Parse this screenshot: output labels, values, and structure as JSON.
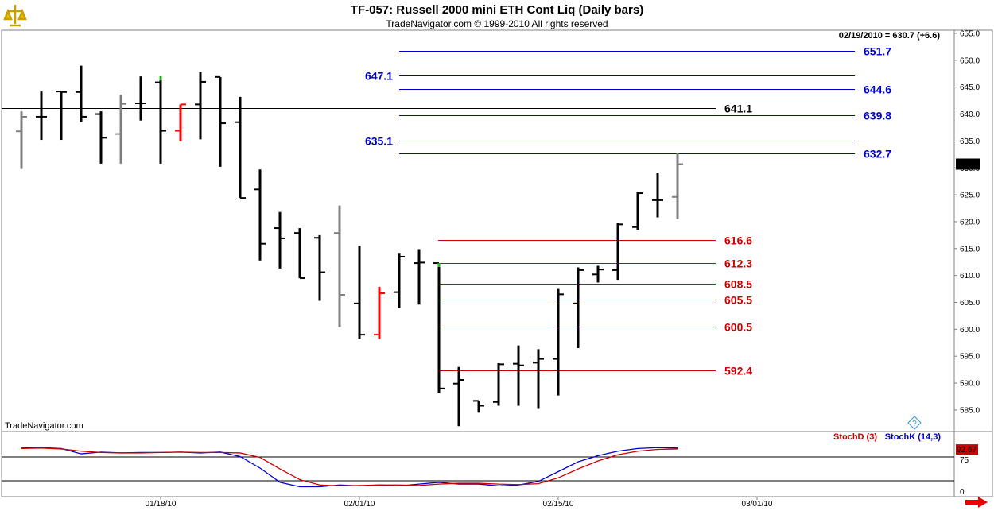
{
  "header": {
    "title": "TF-057:  Russell 2000 mini ETH Cont Liq  (Daily bars)",
    "subtitle": "TradeNavigator.com © 1999-2010 All rights reserved",
    "info": "02/19/2010 = 630.7 (+6.6)",
    "watermark": "TradeNavigator.com"
  },
  "colors": {
    "bar": "#000000",
    "bar_gray": "#808080",
    "bar_red": "#ff0000",
    "bar_green": "#22bb22",
    "level_blue": "#0000cc",
    "level_red": "#cc0000",
    "level_black": "#000000",
    "stochD": "#cc0000",
    "stochK": "#0000cc"
  },
  "chart_data": {
    "type": "ohlc",
    "y_ticks": [
      "655.0",
      "650.0",
      "645.0",
      "640.0",
      "635.0",
      "630.0",
      "625.0",
      "620.0",
      "615.0",
      "610.0",
      "605.0",
      "600.0",
      "595.0",
      "590.0",
      "585.0"
    ],
    "ylim": [
      582,
      656
    ],
    "last_price_label": "630.7",
    "x_ticks": [
      {
        "label": "01/18/10",
        "index": 7
      },
      {
        "label": "02/01/10",
        "index": 17
      },
      {
        "label": "02/15/10",
        "index": 27
      },
      {
        "label": "03/01/10",
        "index": 37
      }
    ],
    "bars": [
      {
        "o": 636.8,
        "h": 640.5,
        "l": 629.8,
        "c": 639.5,
        "color": "gray"
      },
      {
        "o": 639.5,
        "h": 644.2,
        "l": 635.2,
        "c": 639.5,
        "color": "black"
      },
      {
        "o": 644.2,
        "h": 644.2,
        "l": 635.2,
        "c": 644.1,
        "color": "black"
      },
      {
        "o": 644.1,
        "h": 649.0,
        "l": 638.5,
        "c": 639.5,
        "color": "black"
      },
      {
        "o": 640.0,
        "h": 640.5,
        "l": 630.8,
        "c": 635.6,
        "color": "black"
      },
      {
        "o": 636.3,
        "h": 643.6,
        "l": 630.8,
        "c": 641.9,
        "color": "gray"
      },
      {
        "o": 642.0,
        "h": 647.0,
        "l": 638.8,
        "c": 642.0,
        "color": "black"
      },
      {
        "o": 645.9,
        "h": 647.0,
        "l": 630.8,
        "c": 636.9,
        "color": "black",
        "green_high": true
      },
      {
        "o": 636.9,
        "h": 641.8,
        "l": 634.9,
        "c": 641.8,
        "color": "red"
      },
      {
        "o": 641.8,
        "h": 647.8,
        "l": 635.3,
        "c": 646.0,
        "color": "black"
      },
      {
        "o": 646.9,
        "h": 646.9,
        "l": 630.2,
        "c": 638.3,
        "color": "black"
      },
      {
        "o": 638.5,
        "h": 643.2,
        "l": 624.4,
        "c": 624.4,
        "color": "black"
      },
      {
        "o": 626.0,
        "h": 629.7,
        "l": 612.8,
        "c": 615.9,
        "color": "black"
      },
      {
        "o": 618.8,
        "h": 621.8,
        "l": 611.3,
        "c": 616.9,
        "color": "black"
      },
      {
        "o": 617.9,
        "h": 618.8,
        "l": 609.5,
        "c": 609.5,
        "color": "black"
      },
      {
        "o": 617.0,
        "h": 617.5,
        "l": 605.3,
        "c": 610.6,
        "color": "black"
      },
      {
        "o": 617.9,
        "h": 623.0,
        "l": 600.4,
        "c": 606.4,
        "color": "gray"
      },
      {
        "o": 604.8,
        "h": 615.5,
        "l": 598.2,
        "c": 599.0,
        "color": "black"
      },
      {
        "o": 599.0,
        "h": 607.9,
        "l": 598.2,
        "c": 606.7,
        "color": "red"
      },
      {
        "o": 606.9,
        "h": 614.2,
        "l": 603.9,
        "c": 613.5,
        "color": "black"
      },
      {
        "o": 612.3,
        "h": 614.9,
        "l": 604.6,
        "c": 612.4,
        "color": "black"
      },
      {
        "o": 612.3,
        "h": 612.3,
        "l": 588.1,
        "c": 589.0,
        "color": "black",
        "green_high": true
      },
      {
        "o": 589.9,
        "h": 593.0,
        "l": 582.0,
        "c": 590.6,
        "color": "black"
      },
      {
        "o": 586.7,
        "h": 586.7,
        "l": 584.5,
        "c": 585.8,
        "color": "black"
      },
      {
        "o": 586.5,
        "h": 593.7,
        "l": 585.8,
        "c": 593.5,
        "color": "black"
      },
      {
        "o": 593.6,
        "h": 597.0,
        "l": 585.8,
        "c": 593.3,
        "color": "black"
      },
      {
        "o": 593.8,
        "h": 596.3,
        "l": 585.2,
        "c": 594.5,
        "color": "black"
      },
      {
        "o": 594.5,
        "h": 607.5,
        "l": 587.7,
        "c": 606.5,
        "color": "black"
      },
      {
        "o": 604.8,
        "h": 611.5,
        "l": 596.5,
        "c": 611.0,
        "color": "black"
      },
      {
        "o": 610.2,
        "h": 611.8,
        "l": 608.7,
        "c": 611.1,
        "color": "black"
      },
      {
        "o": 611.0,
        "h": 619.8,
        "l": 609.2,
        "c": 619.5,
        "color": "black"
      },
      {
        "o": 619.0,
        "h": 625.5,
        "l": 618.5,
        "c": 625.3,
        "color": "black"
      },
      {
        "o": 624.0,
        "h": 629.0,
        "l": 620.8,
        "c": 624.0,
        "color": "black"
      },
      {
        "o": 624.6,
        "h": 632.7,
        "l": 620.5,
        "c": 630.7,
        "color": "gray"
      }
    ],
    "levels": [
      {
        "label": "651.7",
        "value": 651.7,
        "color": "blue",
        "side": "right"
      },
      {
        "label": "647.1",
        "value": 647.1,
        "color": "blue",
        "side": "left"
      },
      {
        "label": "644.6",
        "value": 644.6,
        "color": "blue",
        "side": "right"
      },
      {
        "label": "641.1",
        "value": 641.1,
        "color": "black",
        "side": "mid"
      },
      {
        "label": "639.8",
        "value": 639.8,
        "color": "blue",
        "side": "right"
      },
      {
        "label": "635.1",
        "value": 635.1,
        "color": "blue",
        "side": "left"
      },
      {
        "label": "632.7",
        "value": 632.7,
        "color": "blue",
        "side": "right"
      },
      {
        "label": "616.6",
        "value": 616.6,
        "color": "red",
        "side": "redright"
      },
      {
        "label": "612.3",
        "value": 612.3,
        "color": "red",
        "side": "redright"
      },
      {
        "label": "608.5",
        "value": 608.5,
        "color": "red",
        "side": "redright"
      },
      {
        "label": "605.5",
        "value": 605.5,
        "color": "red",
        "side": "redright"
      },
      {
        "label": "600.5",
        "value": 600.5,
        "color": "red",
        "side": "redright"
      },
      {
        "label": "592.4",
        "value": 592.4,
        "color": "red",
        "side": "redright"
      }
    ],
    "stochastic": {
      "legend_d": "StochD (3)",
      "legend_k": "StochK (14,3)",
      "y_ticks": [
        "75",
        "0"
      ],
      "last_label": "92.67",
      "ylim": [
        0,
        100
      ],
      "d_values": [
        94,
        95,
        93,
        88,
        85,
        84,
        84,
        85,
        86,
        85,
        85,
        84,
        74,
        48,
        24,
        12,
        10,
        11,
        12,
        12,
        11,
        14,
        16,
        16,
        14,
        13,
        15,
        28,
        48,
        66,
        80,
        88,
        92,
        93
      ],
      "k_values": [
        95,
        96,
        94,
        82,
        86,
        84,
        85,
        85,
        86,
        84,
        86,
        76,
        50,
        18,
        8,
        8,
        12,
        10,
        12,
        10,
        14,
        18,
        14,
        14,
        10,
        12,
        20,
        42,
        64,
        78,
        88,
        94,
        96,
        95
      ]
    }
  }
}
